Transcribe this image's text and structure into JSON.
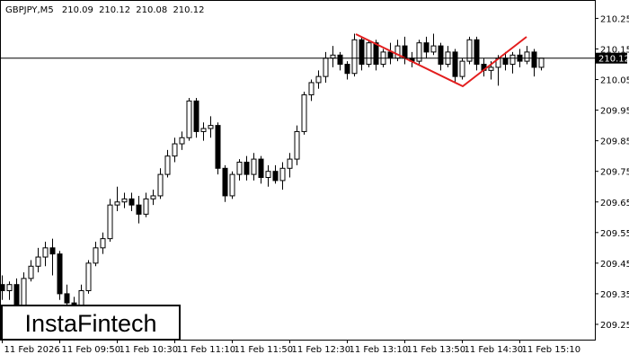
{
  "chart_data": {
    "type": "candlestick",
    "symbol": "GBPJPY,M5",
    "brand": "InstaFintech",
    "categories": [
      "11 Feb 2026",
      null,
      null,
      null,
      null,
      null,
      null,
      null,
      "11 Feb 09:50",
      null,
      null,
      null,
      null,
      null,
      null,
      null,
      "11 Feb 10:30",
      null,
      null,
      null,
      null,
      null,
      null,
      null,
      "11 Feb 11:10",
      null,
      null,
      null,
      null,
      null,
      null,
      null,
      "11 Feb 11:50",
      null,
      null,
      null,
      null,
      null,
      null,
      null,
      "11 Feb 12:30",
      null,
      null,
      null,
      null,
      null,
      null,
      null,
      "11 Feb 13:10",
      null,
      null,
      null,
      null,
      null,
      null,
      null,
      "11 Feb 13:50",
      null,
      null,
      null,
      null,
      null,
      null,
      null,
      "11 Feb 14:30",
      null,
      null,
      null,
      null,
      null,
      null,
      null,
      "11 Feb 15:10",
      null,
      null,
      null
    ],
    "open": [
      209.38,
      209.36,
      209.38,
      209.31,
      209.4,
      209.44,
      209.47,
      209.5,
      209.48,
      209.35,
      209.32,
      209.29,
      209.36,
      209.45,
      209.5,
      209.53,
      209.64,
      209.65,
      209.66,
      209.64,
      209.61,
      209.66,
      209.67,
      209.74,
      209.8,
      209.84,
      209.86,
      209.98,
      209.88,
      209.89,
      209.9,
      209.76,
      209.67,
      209.74,
      209.78,
      209.74,
      209.79,
      209.73,
      209.75,
      209.72,
      209.76,
      209.79,
      209.88,
      210.0,
      210.04,
      210.06,
      210.12,
      210.13,
      210.1,
      210.07,
      210.18,
      210.1,
      210.17,
      210.1,
      210.14,
      210.12,
      210.16,
      210.12,
      210.11,
      210.17,
      210.14,
      210.16,
      210.1,
      210.14,
      210.06,
      210.11,
      210.18,
      210.1,
      210.08,
      210.09,
      210.12,
      210.1,
      210.13,
      210.11,
      210.14,
      210.09
    ],
    "high": [
      209.41,
      209.39,
      209.4,
      209.42,
      209.46,
      209.5,
      209.52,
      209.53,
      209.49,
      209.38,
      209.34,
      209.38,
      209.46,
      209.52,
      209.55,
      209.66,
      209.7,
      209.68,
      209.68,
      209.67,
      209.68,
      209.69,
      209.76,
      209.82,
      209.86,
      209.88,
      209.99,
      209.99,
      209.91,
      209.93,
      209.91,
      209.77,
      209.75,
      209.79,
      209.8,
      209.81,
      209.8,
      209.77,
      209.77,
      209.78,
      209.81,
      209.9,
      210.01,
      210.05,
      210.08,
      210.14,
      210.16,
      210.14,
      210.11,
      210.2,
      210.19,
      210.18,
      210.18,
      210.15,
      210.17,
      210.18,
      210.19,
      210.14,
      210.18,
      210.19,
      210.2,
      210.17,
      210.16,
      210.15,
      210.12,
      210.19,
      210.19,
      210.12,
      210.11,
      210.13,
      210.14,
      210.14,
      210.15,
      210.16,
      210.15,
      210.12
    ],
    "low": [
      209.33,
      209.33,
      209.28,
      209.3,
      209.39,
      209.42,
      209.44,
      209.41,
      209.33,
      209.3,
      209.24,
      209.28,
      209.35,
      209.44,
      209.48,
      209.52,
      209.62,
      209.63,
      209.62,
      209.58,
      209.6,
      209.64,
      209.66,
      209.73,
      209.78,
      209.82,
      209.85,
      209.86,
      209.85,
      209.86,
      209.74,
      209.65,
      209.66,
      209.72,
      209.72,
      209.72,
      209.71,
      209.7,
      209.71,
      209.69,
      209.73,
      209.77,
      209.87,
      209.98,
      210.02,
      210.04,
      210.09,
      210.08,
      210.05,
      210.06,
      210.08,
      210.09,
      210.08,
      210.09,
      210.1,
      210.11,
      210.1,
      210.09,
      210.1,
      210.12,
      210.13,
      210.08,
      210.09,
      210.04,
      210.05,
      210.1,
      210.08,
      210.06,
      210.05,
      210.03,
      210.08,
      210.07,
      210.09,
      210.1,
      210.06,
      210.08
    ],
    "close": [
      209.36,
      209.38,
      209.31,
      209.4,
      209.44,
      209.47,
      209.5,
      209.48,
      209.35,
      209.32,
      209.29,
      209.36,
      209.45,
      209.5,
      209.53,
      209.64,
      209.65,
      209.66,
      209.64,
      209.61,
      209.66,
      209.67,
      209.74,
      209.8,
      209.84,
      209.86,
      209.98,
      209.88,
      209.89,
      209.9,
      209.76,
      209.67,
      209.74,
      209.78,
      209.74,
      209.79,
      209.73,
      209.75,
      209.72,
      209.76,
      209.79,
      209.88,
      210.0,
      210.04,
      210.06,
      210.12,
      210.13,
      210.1,
      210.07,
      210.18,
      210.1,
      210.17,
      210.1,
      210.14,
      210.12,
      210.16,
      210.12,
      210.11,
      210.17,
      210.14,
      210.16,
      210.1,
      210.14,
      210.06,
      210.11,
      210.18,
      210.1,
      210.08,
      210.09,
      210.12,
      210.1,
      210.13,
      210.11,
      210.14,
      210.09,
      210.12
    ],
    "ylim": [
      209.2,
      210.31
    ],
    "yticks": [
      210.25,
      210.15,
      210.05,
      209.95,
      209.85,
      209.75,
      209.65,
      209.55,
      209.45,
      209.35,
      209.25
    ],
    "up_color": "#ffffff",
    "down_color": "#000000",
    "outline_color": "#000000"
  }
}
